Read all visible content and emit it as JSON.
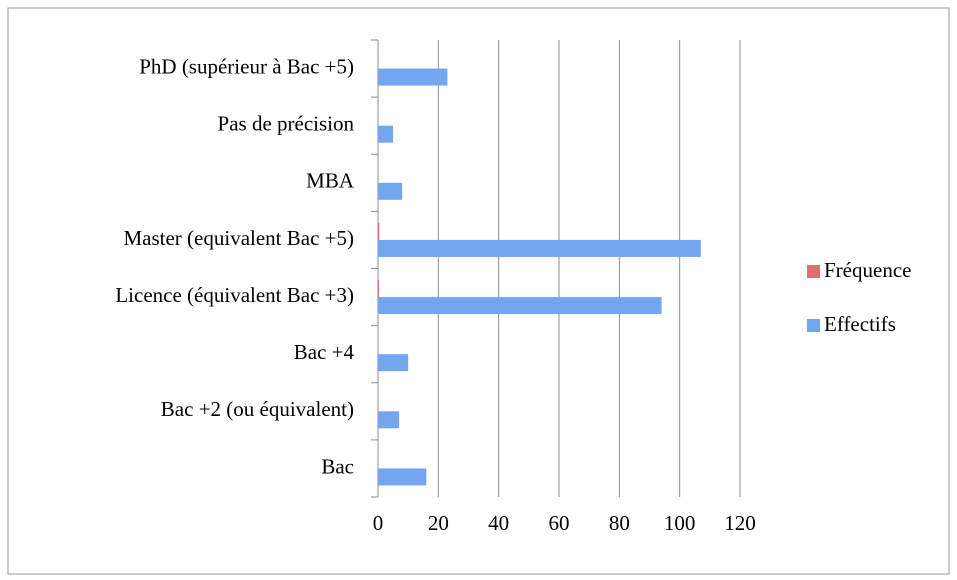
{
  "chart_data": {
    "type": "hbar",
    "categories": [
      "Bac",
      "Bac +2 (ou équivalent)",
      "Bac +4",
      "Licence (équivalent Bac +3)",
      "Master (equivalent Bac +5)",
      "MBA",
      "Pas de précision",
      "PhD (supérieur à Bac +5)"
    ],
    "series": [
      {
        "name": "Fréquence",
        "color": "#e07070",
        "values": [
          0.06,
          0.03,
          0.04,
          0.35,
          0.4,
          0.03,
          0.02,
          0.09
        ]
      },
      {
        "name": "Effectifs",
        "color": "#74a6ef",
        "values": [
          16,
          7,
          10,
          94,
          107,
          8,
          5,
          23
        ]
      }
    ],
    "xlim": [
      0,
      120
    ],
    "xticks": [
      0,
      20,
      40,
      60,
      80,
      100,
      120
    ],
    "grid": true,
    "legend": "right"
  }
}
